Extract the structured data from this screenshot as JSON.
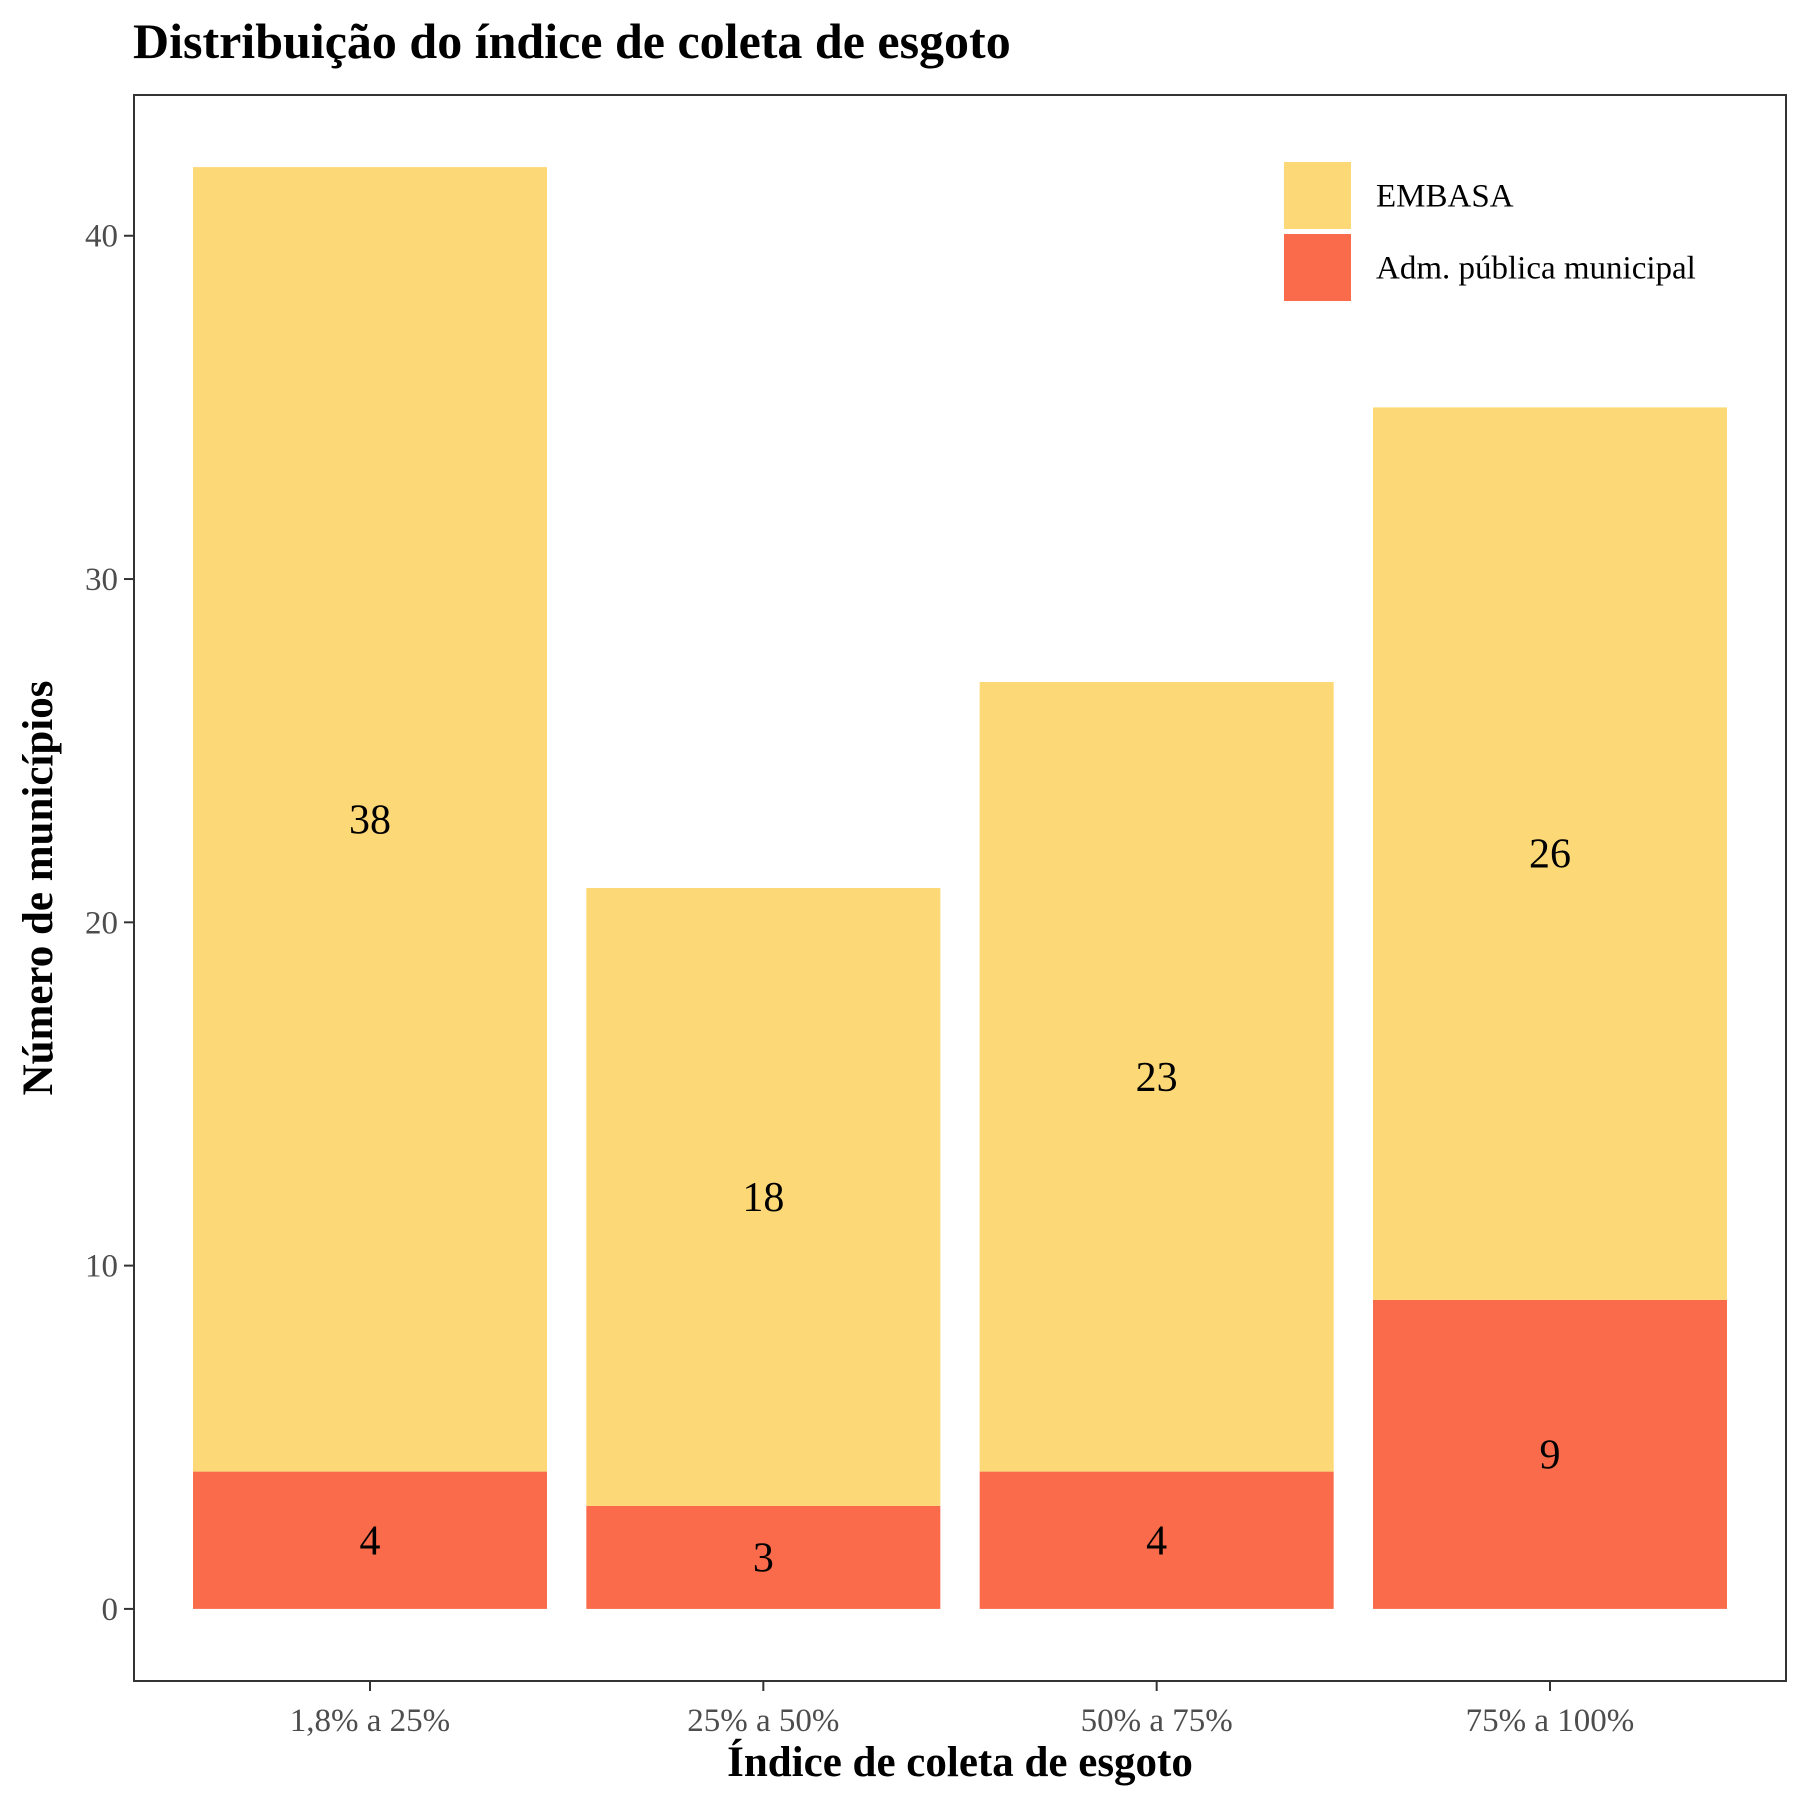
{
  "chart_data": {
    "type": "bar",
    "stacked": true,
    "title": "Distribuição do índice de coleta de esgoto",
    "xlabel": "Índice de coleta de esgoto",
    "ylabel": "Número de municípios",
    "categories": [
      "1,8% a 25%",
      "25% a 50%",
      "50% a 75%",
      "75% a 100%"
    ],
    "series": [
      {
        "name": "Adm. pública municipal",
        "values": [
          4,
          3,
          4,
          9
        ],
        "color": "#FA6B4B"
      },
      {
        "name": "EMBASA",
        "values": [
          38,
          18,
          23,
          26
        ],
        "color": "#FDD876"
      }
    ],
    "legend_order": [
      "EMBASA",
      "Adm. pública municipal"
    ],
    "legend_position": "top-right",
    "ylim": [
      -2.1,
      44.1
    ],
    "yticks": [
      0,
      10,
      20,
      30,
      40
    ],
    "grid": false
  }
}
